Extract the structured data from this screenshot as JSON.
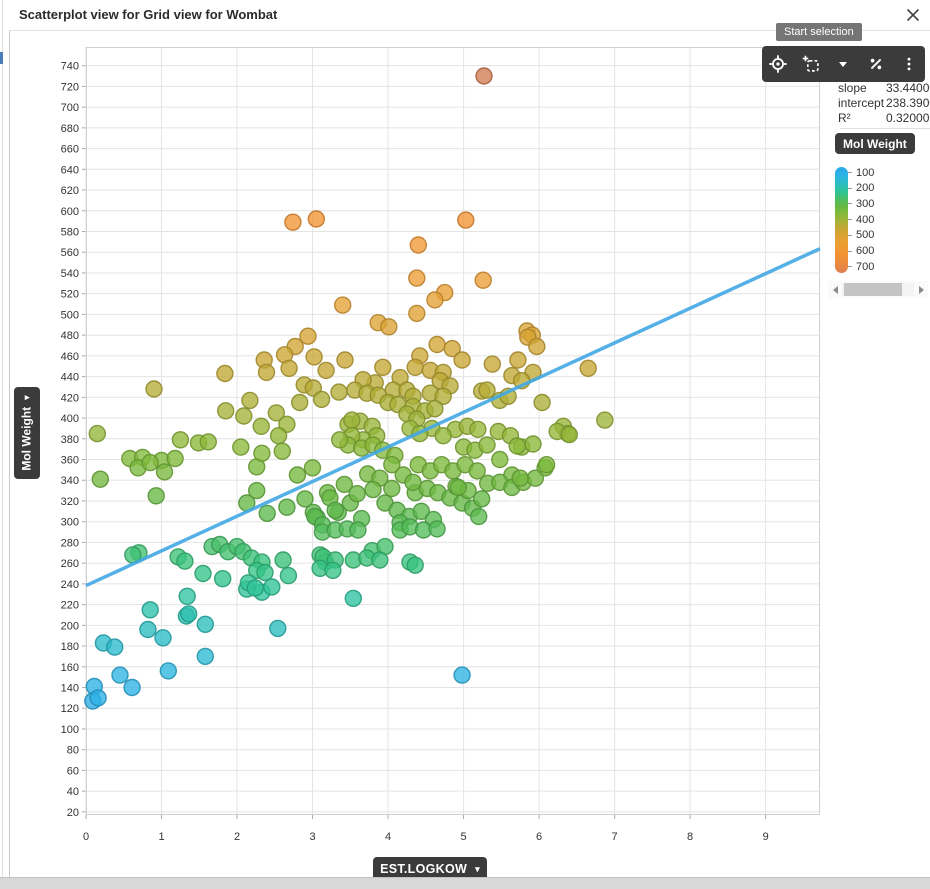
{
  "window": {
    "title": "Scatterplot view for Grid view for Wombat"
  },
  "tooltip": {
    "text": "Start selection"
  },
  "toolbar": {
    "icons": [
      "crosshair-icon",
      "selection-rect-icon",
      "chevron-down-icon",
      "percent-icon",
      "kebab-menu-icon"
    ]
  },
  "stats": {
    "rows": [
      {
        "label": "slope",
        "value": "33.44000"
      },
      {
        "label": "intercept",
        "value": "238.39000"
      },
      {
        "label": "R²",
        "value": "0.32000"
      }
    ]
  },
  "legend": {
    "title": "Mol Weight",
    "ticks": [
      100,
      200,
      300,
      400,
      500,
      600,
      700
    ]
  },
  "axes": {
    "x_button": {
      "label": "EST.LOGKOW",
      "caret": "▾"
    },
    "y_button": {
      "label": "Mol Weight",
      "caret": "▾"
    }
  },
  "colors": {
    "dark_ui": "#3b3b3b",
    "tooltip_bg": "#757575",
    "grid": "#e4e4e4",
    "plot_border": "#cfcfcf",
    "regression_line": "#41a7e3"
  },
  "chart_data": {
    "type": "scatter",
    "title": "Scatterplot view for Grid view for Wombat",
    "xlabel": "EST.LOGKOW",
    "ylabel": "Mol Weight",
    "xlim": [
      0,
      9.72
    ],
    "ylim": [
      17,
      758
    ],
    "x_ticks": [
      0,
      1,
      2,
      3,
      4,
      5,
      6,
      7,
      8,
      9
    ],
    "y_tick_start": 20,
    "y_tick_end": 740,
    "y_tick_step": 20,
    "grid": true,
    "legend_position": "right",
    "color_by": "Mol Weight",
    "color_stops": [
      [
        100,
        "#2ba7e8"
      ],
      [
        150,
        "#2db4e4"
      ],
      [
        190,
        "#2bbcc4"
      ],
      [
        230,
        "#2ec49e"
      ],
      [
        260,
        "#38c37e"
      ],
      [
        290,
        "#52bd5c"
      ],
      [
        320,
        "#66b845"
      ],
      [
        360,
        "#7fba3b"
      ],
      [
        400,
        "#a0b438"
      ],
      [
        440,
        "#c0a835"
      ],
      [
        480,
        "#d8a434"
      ],
      [
        520,
        "#e9a035"
      ],
      [
        560,
        "#f09a33"
      ],
      [
        600,
        "#f39133"
      ],
      [
        650,
        "#ec8a40"
      ],
      [
        700,
        "#db7f4e"
      ],
      [
        740,
        "#cd7a52"
      ]
    ],
    "regression": {
      "slope": 33.44,
      "intercept": 238.39,
      "r2": 0.32,
      "x_range": [
        0,
        9.72
      ]
    },
    "points": [
      [
        5.27,
        730
      ],
      [
        2.74,
        589
      ],
      [
        3.05,
        592
      ],
      [
        5.03,
        591
      ],
      [
        4.4,
        567
      ],
      [
        4.38,
        535
      ],
      [
        5.26,
        533
      ],
      [
        4.75,
        521
      ],
      [
        4.62,
        514
      ],
      [
        3.4,
        509
      ],
      [
        4.38,
        501
      ],
      [
        3.87,
        492
      ],
      [
        4.01,
        488
      ],
      [
        5.84,
        484
      ],
      [
        5.91,
        480
      ],
      [
        2.94,
        479
      ],
      [
        2.77,
        469
      ],
      [
        2.63,
        461
      ],
      [
        2.36,
        456
      ],
      [
        3.02,
        459
      ],
      [
        2.39,
        444
      ],
      [
        2.69,
        448
      ],
      [
        3.43,
        456
      ],
      [
        3.93,
        449
      ],
      [
        4.65,
        471
      ],
      [
        4.85,
        467
      ],
      [
        4.42,
        460
      ],
      [
        4.36,
        449
      ],
      [
        4.56,
        446
      ],
      [
        4.73,
        444
      ],
      [
        4.98,
        456
      ],
      [
        5.85,
        478
      ],
      [
        5.97,
        469
      ],
      [
        5.72,
        456
      ],
      [
        5.92,
        444
      ],
      [
        5.64,
        441
      ],
      [
        1.84,
        443
      ],
      [
        6.65,
        448
      ],
      [
        5.38,
        452
      ],
      [
        3.18,
        446
      ],
      [
        4.16,
        439
      ],
      [
        0.9,
        428
      ],
      [
        2.89,
        432
      ],
      [
        3.01,
        429
      ],
      [
        2.83,
        415
      ],
      [
        2.17,
        417
      ],
      [
        3.83,
        434
      ],
      [
        3.67,
        437
      ],
      [
        3.56,
        427
      ],
      [
        3.72,
        424
      ],
      [
        3.87,
        422
      ],
      [
        4.07,
        427
      ],
      [
        4.25,
        427
      ],
      [
        4.0,
        415
      ],
      [
        4.13,
        413
      ],
      [
        4.33,
        421
      ],
      [
        4.69,
        436
      ],
      [
        4.82,
        431
      ],
      [
        4.56,
        424
      ],
      [
        4.73,
        421
      ],
      [
        5.77,
        436
      ],
      [
        5.24,
        426
      ],
      [
        5.31,
        427
      ],
      [
        5.48,
        417
      ],
      [
        5.59,
        421
      ],
      [
        6.04,
        415
      ],
      [
        4.33,
        411
      ],
      [
        4.49,
        407
      ],
      [
        4.62,
        409
      ],
      [
        3.35,
        425
      ],
      [
        3.12,
        418
      ],
      [
        1.85,
        407
      ],
      [
        2.52,
        405
      ],
      [
        2.09,
        402
      ],
      [
        2.32,
        392
      ],
      [
        2.66,
        394
      ],
      [
        3.47,
        394
      ],
      [
        3.63,
        397
      ],
      [
        3.79,
        392
      ],
      [
        4.25,
        404
      ],
      [
        4.38,
        399
      ],
      [
        4.29,
        390
      ],
      [
        4.58,
        390
      ],
      [
        4.89,
        389
      ],
      [
        5.05,
        392
      ],
      [
        5.19,
        389
      ],
      [
        5.46,
        387
      ],
      [
        6.32,
        392
      ],
      [
        3.52,
        398
      ],
      [
        6.87,
        398
      ],
      [
        0.15,
        385
      ],
      [
        4.42,
        385
      ],
      [
        6.38,
        385
      ],
      [
        6.24,
        387
      ],
      [
        2.55,
        383
      ],
      [
        0.58,
        361
      ],
      [
        0.75,
        362
      ],
      [
        0.69,
        352
      ],
      [
        1.0,
        359
      ],
      [
        0.85,
        357
      ],
      [
        0.19,
        341
      ],
      [
        1.04,
        348
      ],
      [
        1.18,
        361
      ],
      [
        1.25,
        379
      ],
      [
        1.49,
        376
      ],
      [
        1.62,
        377
      ],
      [
        2.26,
        353
      ],
      [
        3.85,
        383
      ],
      [
        3.67,
        379
      ],
      [
        3.52,
        383
      ],
      [
        3.47,
        374
      ],
      [
        3.65,
        371
      ],
      [
        3.8,
        374
      ],
      [
        3.36,
        379
      ],
      [
        4.73,
        383
      ],
      [
        5.62,
        383
      ],
      [
        5.77,
        372
      ],
      [
        5.92,
        375
      ],
      [
        3.93,
        369
      ],
      [
        4.09,
        364
      ],
      [
        4.4,
        355
      ],
      [
        4.56,
        349
      ],
      [
        4.71,
        355
      ],
      [
        5.0,
        372
      ],
      [
        5.15,
        369
      ],
      [
        5.31,
        374
      ],
      [
        6.08,
        352
      ],
      [
        3.73,
        346
      ],
      [
        3.89,
        342
      ],
      [
        4.05,
        355
      ],
      [
        4.86,
        349
      ],
      [
        5.02,
        355
      ],
      [
        5.18,
        349
      ],
      [
        2.33,
        366
      ],
      [
        2.05,
        372
      ],
      [
        5.48,
        360
      ],
      [
        5.64,
        345
      ],
      [
        4.2,
        345
      ],
      [
        3.0,
        352
      ],
      [
        2.8,
        345
      ],
      [
        2.6,
        368
      ],
      [
        6.4,
        384
      ],
      [
        5.71,
        373
      ],
      [
        6.1,
        355
      ],
      [
        0.93,
        325
      ],
      [
        2.13,
        318
      ],
      [
        2.4,
        308
      ],
      [
        2.66,
        314
      ],
      [
        3.01,
        309
      ],
      [
        3.06,
        304
      ],
      [
        2.26,
        330
      ],
      [
        3.34,
        309
      ],
      [
        3.5,
        318
      ],
      [
        3.65,
        303
      ],
      [
        3.8,
        331
      ],
      [
        3.96,
        318
      ],
      [
        4.12,
        311
      ],
      [
        4.36,
        328
      ],
      [
        4.52,
        332
      ],
      [
        4.66,
        328
      ],
      [
        4.82,
        323
      ],
      [
        4.98,
        318
      ],
      [
        5.12,
        313
      ],
      [
        5.32,
        337
      ],
      [
        5.48,
        338
      ],
      [
        5.64,
        333
      ],
      [
        5.79,
        338
      ],
      [
        5.95,
        342
      ],
      [
        4.28,
        305
      ],
      [
        4.44,
        310
      ],
      [
        4.6,
        302
      ],
      [
        3.2,
        328
      ],
      [
        2.9,
        322
      ],
      [
        5.2,
        305
      ],
      [
        4.05,
        332
      ],
      [
        3.42,
        336
      ],
      [
        4.9,
        334
      ],
      [
        5.06,
        330
      ],
      [
        3.23,
        323
      ],
      [
        3.3,
        311
      ],
      [
        3.59,
        327
      ],
      [
        3.03,
        305
      ],
      [
        4.33,
        338
      ],
      [
        4.93,
        333
      ],
      [
        5.24,
        322
      ],
      [
        3.13,
        297
      ],
      [
        4.16,
        299
      ],
      [
        5.75,
        342
      ],
      [
        0.7,
        270
      ],
      [
        1.22,
        266
      ],
      [
        1.31,
        262
      ],
      [
        1.67,
        276
      ],
      [
        1.77,
        278
      ],
      [
        1.88,
        271
      ],
      [
        2.0,
        276
      ],
      [
        2.08,
        271
      ],
      [
        2.19,
        265
      ],
      [
        2.33,
        261
      ],
      [
        2.26,
        253
      ],
      [
        2.37,
        251
      ],
      [
        1.55,
        250
      ],
      [
        2.61,
        263
      ],
      [
        3.1,
        268
      ],
      [
        3.17,
        261
      ],
      [
        0.62,
        268
      ],
      [
        3.13,
        290
      ],
      [
        3.3,
        292
      ],
      [
        3.46,
        293
      ],
      [
        3.6,
        292
      ],
      [
        3.79,
        272
      ],
      [
        3.96,
        276
      ],
      [
        4.16,
        292
      ],
      [
        4.29,
        295
      ],
      [
        4.47,
        292
      ],
      [
        4.65,
        293
      ],
      [
        3.14,
        266
      ],
      [
        3.3,
        263
      ],
      [
        3.54,
        263
      ],
      [
        3.72,
        265
      ],
      [
        3.89,
        263
      ],
      [
        4.29,
        261
      ],
      [
        4.36,
        258
      ],
      [
        3.1,
        255
      ],
      [
        3.27,
        253
      ],
      [
        1.34,
        228
      ],
      [
        0.85,
        215
      ],
      [
        3.54,
        226
      ],
      [
        2.13,
        235
      ],
      [
        2.33,
        232
      ],
      [
        1.81,
        245
      ],
      [
        2.68,
        248
      ],
      [
        2.15,
        241
      ],
      [
        2.24,
        236
      ],
      [
        2.46,
        237
      ],
      [
        1.33,
        209
      ],
      [
        1.58,
        201
      ],
      [
        1.36,
        211
      ],
      [
        0.82,
        196
      ],
      [
        2.54,
        197
      ],
      [
        1.02,
        188
      ],
      [
        0.23,
        183
      ],
      [
        0.38,
        179
      ],
      [
        1.58,
        170
      ],
      [
        1.09,
        156
      ],
      [
        0.45,
        152
      ],
      [
        0.11,
        141
      ],
      [
        0.61,
        140
      ],
      [
        0.09,
        127
      ],
      [
        0.16,
        130
      ],
      [
        4.98,
        152
      ]
    ]
  }
}
